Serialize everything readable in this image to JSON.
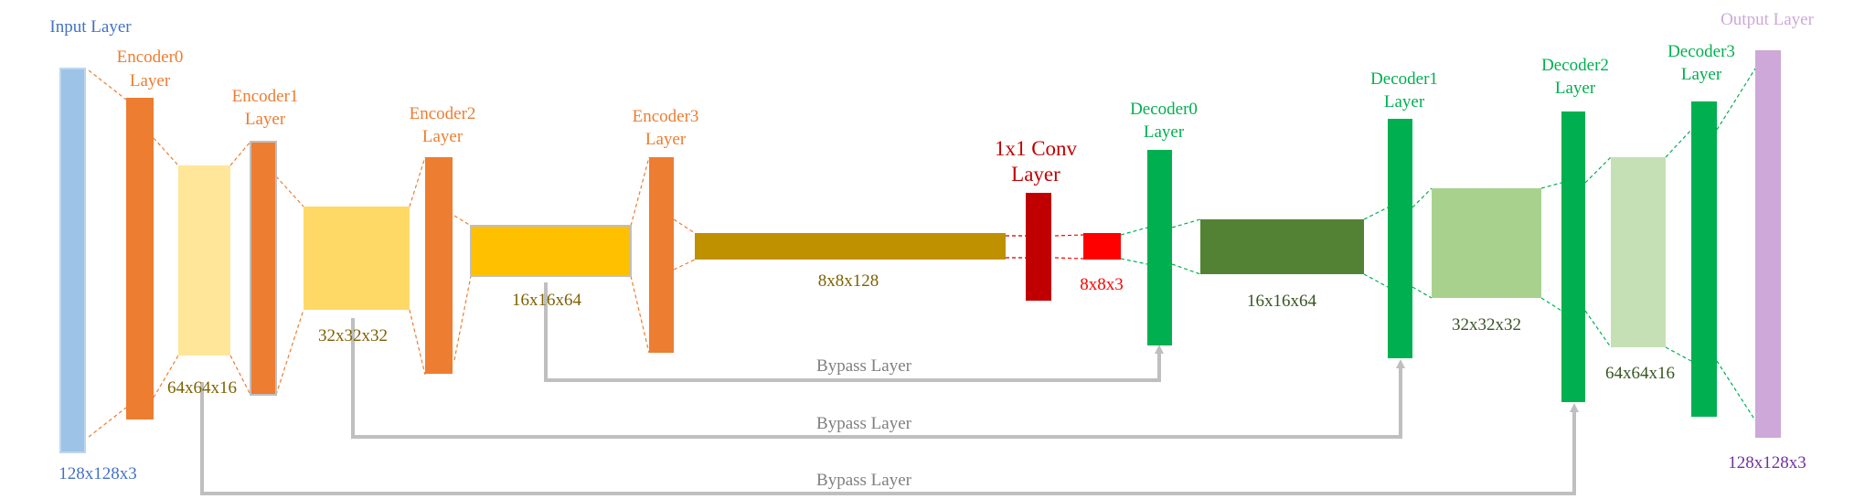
{
  "colors": {
    "input": "#9DC3E6",
    "encoder": "#ED7D31",
    "feature_light": "#FFE699",
    "feature_mid": "#FFD966",
    "feature_gold": "#FFC000",
    "feature_olive": "#BF9000",
    "conv": "#C00000",
    "conv_out": "#FF0000",
    "decoder": "#00B050",
    "dec_feat_dark": "#548235",
    "dec_feat_mid": "#A9D18E",
    "dec_feat_light": "#C5E0B4",
    "output": "#CDA8D9",
    "bypass": "#BFBFBF",
    "label_input": "#4472C4",
    "label_encoder": "#ED7D31",
    "label_dim_enc": "#7F6000",
    "label_conv": "#C00000",
    "label_dim_conv": "#FF0000",
    "label_decoder": "#00B050",
    "label_dim_dec": "#375623",
    "label_output": "#CDA8D9",
    "label_output_dim": "#7030A0",
    "label_bypass": "#7F7F7F"
  },
  "layers": {
    "input": {
      "title": "Input Layer",
      "dim": "128x128x3"
    },
    "encoder0": {
      "title_1": "Encoder0",
      "title_2": "Layer",
      "dim": "64x64x16"
    },
    "encoder1": {
      "title_1": "Encoder1",
      "title_2": "Layer",
      "dim": "32x32x32"
    },
    "encoder2": {
      "title_1": "Encoder2",
      "title_2": "Layer",
      "dim": "16x16x64"
    },
    "encoder3": {
      "title_1": "Encoder3",
      "title_2": "Layer",
      "dim": "8x8x128"
    },
    "conv": {
      "title_1": "1x1 Conv",
      "title_2": "Layer",
      "dim": "8x8x3"
    },
    "decoder0": {
      "title_1": "Decoder0",
      "title_2": "Layer",
      "dim": "16x16x64"
    },
    "decoder1": {
      "title_1": "Decoder1",
      "title_2": "Layer",
      "dim": "32x32x32"
    },
    "decoder2": {
      "title_1": "Decoder2",
      "title_2": "Layer",
      "dim": "64x64x16"
    },
    "decoder3": {
      "title_1": "Decoder3",
      "title_2": "Layer"
    },
    "output": {
      "title": "Output Layer",
      "dim": "128x128x3"
    }
  },
  "bypass": {
    "b1": "Bypass Layer",
    "b2": "Bypass Layer",
    "b3": "Bypass Layer"
  }
}
